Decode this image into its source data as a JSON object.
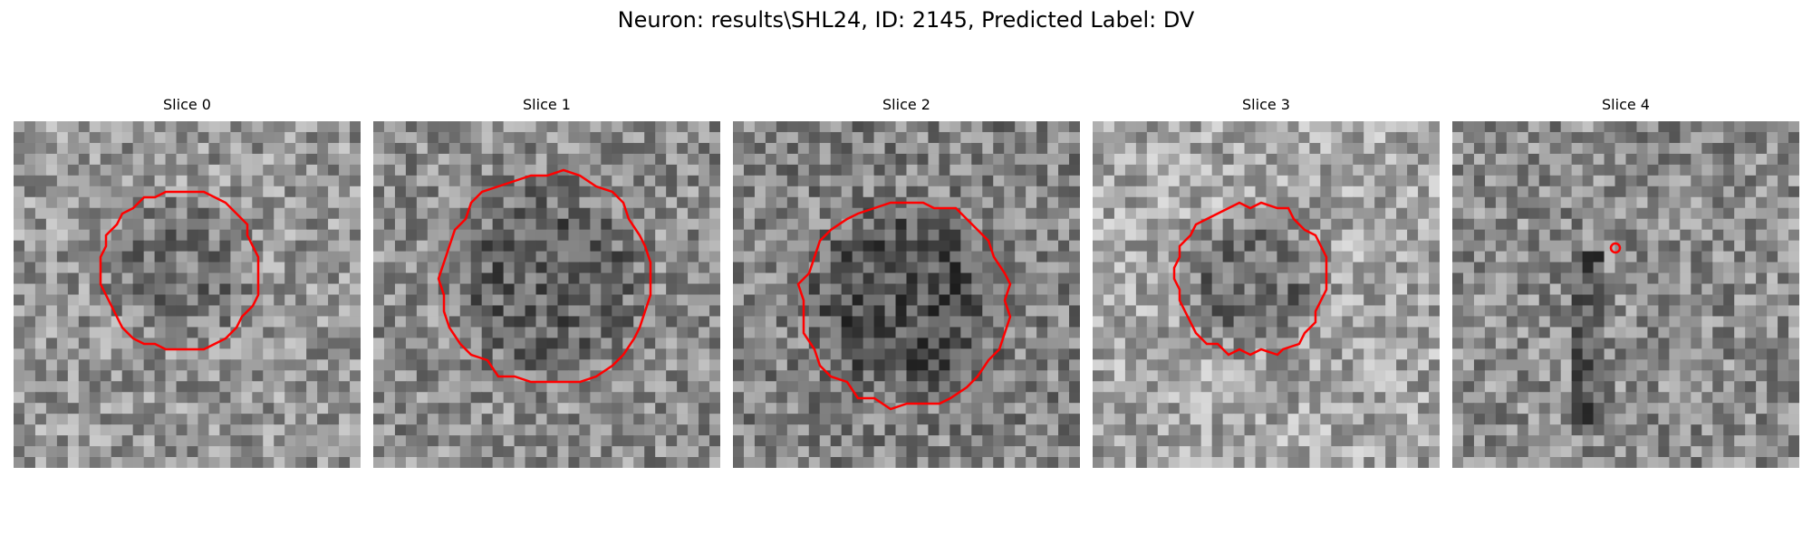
{
  "figure": {
    "title": "Neuron: results\\SHL24, ID: 2145, Predicted Label: DV",
    "contour_color": "#ff0000"
  },
  "slices": [
    {
      "title": "Slice 0"
    },
    {
      "title": "Slice 1"
    },
    {
      "title": "Slice 2"
    },
    {
      "title": "Slice 3"
    },
    {
      "title": "Slice 4"
    }
  ]
}
